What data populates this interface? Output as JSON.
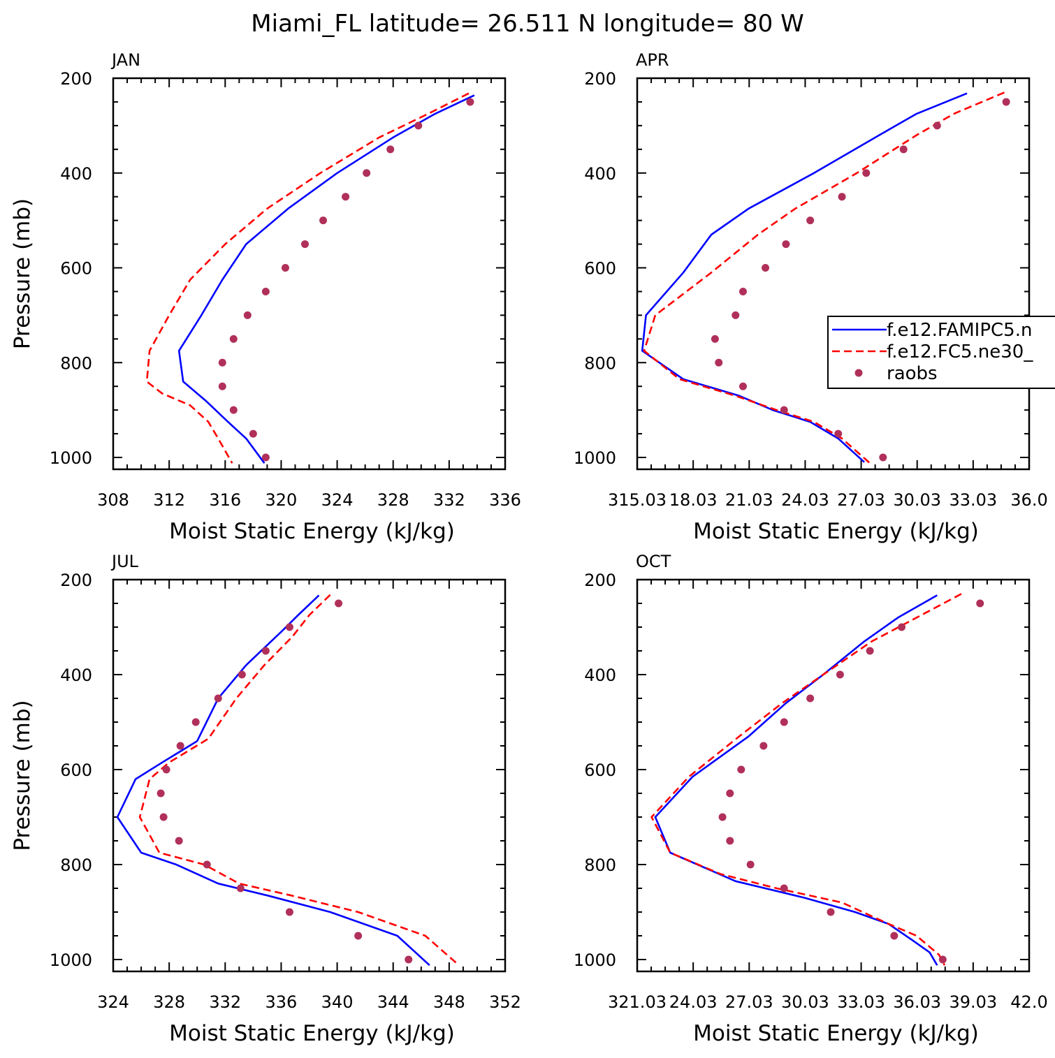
{
  "title": "Miami_FL  latitude= 26.511 N longitude= 80 W",
  "chart_data": [
    {
      "type": "line",
      "label": "JAN",
      "xlabel": "Moist Static Energy (kJ/kg)",
      "ylabel": "Pressure (mb)",
      "xlim": [
        308,
        336
      ],
      "ylim": [
        1025,
        200
      ],
      "xticks": [
        "308",
        "312",
        "316",
        "320",
        "324",
        "328",
        "332",
        "336"
      ],
      "yticks": [
        "200",
        "400",
        "600",
        "800",
        "1000"
      ],
      "legend": false,
      "series": [
        {
          "name": "f.e12.FAMIPC5.n",
          "color": "#0000ff",
          "style": "solid",
          "points": [
            [
              333.8,
              236
            ],
            [
              331.0,
              275
            ],
            [
              328.0,
              325
            ],
            [
              324.0,
              400
            ],
            [
              320.5,
              475
            ],
            [
              317.5,
              550
            ],
            [
              315.8,
              625
            ],
            [
              314.3,
              700
            ],
            [
              312.7,
              775
            ],
            [
              313.0,
              840
            ],
            [
              314.6,
              880
            ],
            [
              316.2,
              925
            ],
            [
              317.5,
              960
            ],
            [
              318.8,
              1012
            ]
          ]
        },
        {
          "name": "f.e12.FC5.ne30_",
          "color": "#ff0000",
          "style": "dashed",
          "points": [
            [
              333.4,
              232
            ],
            [
              330.5,
              275
            ],
            [
              327.0,
              325
            ],
            [
              322.8,
              400
            ],
            [
              319.0,
              475
            ],
            [
              316.0,
              550
            ],
            [
              313.5,
              625
            ],
            [
              312.0,
              700
            ],
            [
              310.6,
              775
            ],
            [
              310.4,
              840
            ],
            [
              311.5,
              865
            ],
            [
              313.5,
              890
            ],
            [
              314.8,
              925
            ],
            [
              315.5,
              960
            ],
            [
              316.5,
              1012
            ]
          ]
        },
        {
          "name": "raobs",
          "color": "#b0305a",
          "style": "dots",
          "points": [
            [
              333.5,
              250
            ],
            [
              329.8,
              300
            ],
            [
              327.8,
              350
            ],
            [
              326.1,
              400
            ],
            [
              324.6,
              450
            ],
            [
              323.0,
              500
            ],
            [
              321.7,
              550
            ],
            [
              320.3,
              600
            ],
            [
              318.9,
              650
            ],
            [
              317.6,
              700
            ],
            [
              316.6,
              750
            ],
            [
              315.8,
              800
            ],
            [
              315.8,
              850
            ],
            [
              316.6,
              900
            ],
            [
              318.0,
              950
            ],
            [
              318.9,
              1000
            ]
          ]
        }
      ]
    },
    {
      "type": "line",
      "label": "APR",
      "xlabel": "Moist Static Energy (kJ/kg)",
      "ylabel": "",
      "xlim": [
        315.03,
        336.03
      ],
      "ylim": [
        1025,
        200
      ],
      "xticks": [
        "315.03",
        "18.03",
        "21.03",
        "24.03",
        "27.03",
        "30.03",
        "33.03",
        "36.0"
      ],
      "yticks": [
        "200",
        "400",
        "600",
        "800",
        "1000"
      ],
      "legend": true,
      "series": [
        {
          "name": "f.e12.FAMIPC5.n",
          "color": "#0000ff",
          "style": "solid",
          "points": [
            [
              332.7,
              232
            ],
            [
              330.0,
              275
            ],
            [
              328.0,
              320
            ],
            [
              324.5,
              400
            ],
            [
              321.0,
              475
            ],
            [
              319.0,
              530
            ],
            [
              317.5,
              610
            ],
            [
              315.5,
              700
            ],
            [
              315.3,
              775
            ],
            [
              317.5,
              835
            ],
            [
              320.5,
              870
            ],
            [
              322.3,
              900
            ],
            [
              324.3,
              925
            ],
            [
              325.8,
              960
            ],
            [
              327.2,
              1010
            ]
          ]
        },
        {
          "name": "f.e12.FC5.ne30_",
          "color": "#ff0000",
          "style": "dashed",
          "points": [
            [
              334.7,
              230
            ],
            [
              332.0,
              275
            ],
            [
              330.0,
              320
            ],
            [
              326.8,
              400
            ],
            [
              323.5,
              475
            ],
            [
              321.5,
              530
            ],
            [
              319.0,
              610
            ],
            [
              316.0,
              700
            ],
            [
              315.4,
              775
            ],
            [
              317.3,
              835
            ],
            [
              320.3,
              870
            ],
            [
              322.5,
              900
            ],
            [
              324.5,
              925
            ],
            [
              326.0,
              960
            ],
            [
              327.5,
              1012
            ]
          ]
        },
        {
          "name": "raobs",
          "color": "#b0305a",
          "style": "dots",
          "points": [
            [
              334.8,
              250
            ],
            [
              331.1,
              300
            ],
            [
              329.3,
              350
            ],
            [
              327.3,
              400
            ],
            [
              326.0,
              450
            ],
            [
              324.3,
              500
            ],
            [
              323.0,
              550
            ],
            [
              321.9,
              600
            ],
            [
              320.7,
              650
            ],
            [
              320.3,
              700
            ],
            [
              319.2,
              750
            ],
            [
              319.4,
              800
            ],
            [
              320.7,
              850
            ],
            [
              322.9,
              900
            ],
            [
              325.8,
              950
            ],
            [
              328.2,
              1000
            ]
          ]
        }
      ]
    },
    {
      "type": "line",
      "label": "JUL",
      "xlabel": "Moist Static Energy (kJ/kg)",
      "ylabel": "Pressure (mb)",
      "xlim": [
        324,
        352
      ],
      "ylim": [
        1025,
        200
      ],
      "xticks": [
        "324",
        "328",
        "332",
        "336",
        "340",
        "344",
        "348",
        "352"
      ],
      "yticks": [
        "200",
        "400",
        "600",
        "800",
        "1000"
      ],
      "legend": false,
      "series": [
        {
          "name": "f.e12.FAMIPC5.n",
          "color": "#0000ff",
          "style": "solid",
          "points": [
            [
              338.7,
              233
            ],
            [
              337.2,
              275
            ],
            [
              336.0,
              310
            ],
            [
              333.5,
              380
            ],
            [
              331.5,
              450
            ],
            [
              330.0,
              540
            ],
            [
              327.5,
              585
            ],
            [
              325.6,
              620
            ],
            [
              324.3,
              700
            ],
            [
              326.0,
              775
            ],
            [
              328.5,
              800
            ],
            [
              331.5,
              840
            ],
            [
              335.0,
              865
            ],
            [
              339.5,
              900
            ],
            [
              344.3,
              950
            ],
            [
              346.6,
              1012
            ]
          ]
        },
        {
          "name": "f.e12.FC5.ne30_",
          "color": "#ff0000",
          "style": "dashed",
          "points": [
            [
              339.5,
              232
            ],
            [
              338.0,
              275
            ],
            [
              336.8,
              320
            ],
            [
              334.8,
              380
            ],
            [
              332.8,
              450
            ],
            [
              330.8,
              535
            ],
            [
              328.0,
              585
            ],
            [
              326.6,
              620
            ],
            [
              325.9,
              700
            ],
            [
              327.3,
              775
            ],
            [
              330.5,
              800
            ],
            [
              333.0,
              840
            ],
            [
              336.7,
              865
            ],
            [
              341.5,
              900
            ],
            [
              346.3,
              950
            ],
            [
              348.7,
              1012
            ]
          ]
        },
        {
          "name": "raobs",
          "color": "#b0305a",
          "style": "dots",
          "points": [
            [
              340.1,
              250
            ],
            [
              336.6,
              300
            ],
            [
              334.9,
              350
            ],
            [
              333.2,
              400
            ],
            [
              331.5,
              450
            ],
            [
              329.9,
              500
            ],
            [
              328.8,
              550
            ],
            [
              327.8,
              600
            ],
            [
              327.4,
              650
            ],
            [
              327.6,
              700
            ],
            [
              328.7,
              750
            ],
            [
              330.7,
              800
            ],
            [
              333.1,
              850
            ],
            [
              336.6,
              900
            ],
            [
              341.5,
              950
            ],
            [
              345.1,
              1000
            ]
          ]
        }
      ]
    },
    {
      "type": "line",
      "label": "OCT",
      "xlabel": "Moist Static Energy (kJ/kg)",
      "ylabel": "",
      "xlim": [
        321.03,
        342.03
      ],
      "ylim": [
        1025,
        200
      ],
      "xticks": [
        "321.03",
        "24.03",
        "27.03",
        "30.03",
        "33.03",
        "36.03",
        "39.03",
        "42.0"
      ],
      "yticks": [
        "200",
        "400",
        "600",
        "800",
        "1000"
      ],
      "legend": false,
      "series": [
        {
          "name": "f.e12.FAMIPC5.n",
          "color": "#0000ff",
          "style": "solid",
          "points": [
            [
              337.1,
              233
            ],
            [
              335.0,
              280
            ],
            [
              333.2,
              330
            ],
            [
              331.0,
              400
            ],
            [
              329.0,
              460
            ],
            [
              327.0,
              530
            ],
            [
              324.0,
              615
            ],
            [
              322.0,
              700
            ],
            [
              322.8,
              775
            ],
            [
              326.3,
              835
            ],
            [
              330.0,
              870
            ],
            [
              332.7,
              900
            ],
            [
              334.5,
              925
            ],
            [
              335.8,
              960
            ],
            [
              336.7,
              985
            ],
            [
              337.1,
              1012
            ]
          ]
        },
        {
          "name": "f.e12.FC5.ne30_",
          "color": "#ff0000",
          "style": "dashed",
          "points": [
            [
              338.4,
              230
            ],
            [
              336.0,
              280
            ],
            [
              333.6,
              330
            ],
            [
              331.0,
              400
            ],
            [
              328.8,
              460
            ],
            [
              326.5,
              530
            ],
            [
              323.8,
              615
            ],
            [
              321.8,
              700
            ],
            [
              322.8,
              775
            ],
            [
              325.5,
              820
            ],
            [
              328.5,
              850
            ],
            [
              332.0,
              880
            ],
            [
              334.5,
              925
            ],
            [
              336.0,
              950
            ],
            [
              337.2,
              990
            ],
            [
              337.5,
              1012
            ]
          ]
        },
        {
          "name": "raobs",
          "color": "#b0305a",
          "style": "dots",
          "points": [
            [
              339.4,
              250
            ],
            [
              335.2,
              300
            ],
            [
              333.5,
              350
            ],
            [
              331.9,
              400
            ],
            [
              330.3,
              450
            ],
            [
              328.9,
              500
            ],
            [
              327.8,
              550
            ],
            [
              326.6,
              600
            ],
            [
              326.0,
              650
            ],
            [
              325.6,
              700
            ],
            [
              326.0,
              750
            ],
            [
              327.1,
              800
            ],
            [
              328.9,
              850
            ],
            [
              331.4,
              900
            ],
            [
              334.8,
              950
            ],
            [
              337.4,
              1000
            ]
          ]
        }
      ]
    }
  ]
}
